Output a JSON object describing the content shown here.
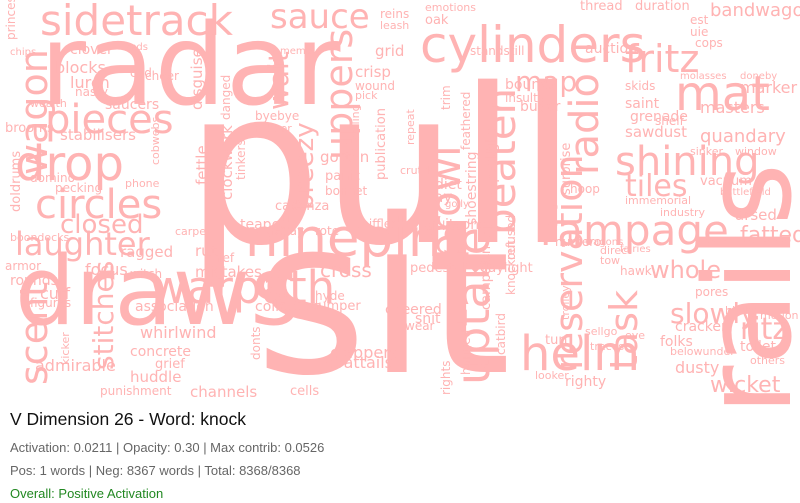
{
  "caption": {
    "title": "V Dimension 26 - Word: knock",
    "metrics": "Activation: 0.0211 | Opacity: 0.30 | Max contrib: 0.0526",
    "counts": "Pos: 1 words | Neg: 8367 words | Total: 8368/8368",
    "status": "Overall: Positive Activation"
  },
  "colors": {
    "word": "#ffb3b3",
    "status": "#228822"
  },
  "words": [
    "pull",
    "sit",
    "rails",
    "radar",
    "draws",
    "ninepins",
    "sidetrack",
    "cylinders",
    "warpath",
    "rampage",
    "drop",
    "laughter",
    "pieces",
    "circles",
    "helm",
    "reservation",
    "task",
    "uptake",
    "sauce",
    "shining",
    "mat",
    "fritz",
    "beaten",
    "prowl",
    "radio",
    "uppers",
    "wagon",
    "scent",
    "stitches",
    "wait",
    "tiles",
    "whole",
    "slowly",
    "ritz",
    "wicket",
    "closed",
    "fatted",
    "breezy",
    "cross",
    "map",
    "thread",
    "duration",
    "bandwagon",
    "reins",
    "oak",
    "emotions",
    "leash",
    "grid",
    "trim",
    "standstill",
    "auction",
    "bounds",
    "insults",
    "buyer",
    "skids",
    "saint",
    "grenade",
    "masters",
    "marker",
    "molasses",
    "doneby",
    "quandary",
    "shelf",
    "sawdust",
    "sinker",
    "window",
    "vacuum",
    "battlefield",
    "immemorial",
    "arsed",
    "industry",
    "tow",
    "hawk",
    "pores",
    "cracker",
    "hitch",
    "motion",
    "toilet",
    "others",
    "folks",
    "dusty",
    "belowunder",
    "eve",
    "righty",
    "looker",
    "traces",
    "sellgo",
    "turf",
    "trolley",
    "catbird",
    "campaign",
    "hanged",
    "rights",
    "knockout",
    "refused",
    "spotlight",
    "shoestring",
    "surprise",
    "hoop",
    "diet",
    "crutch",
    "lay",
    "golly",
    "gotten",
    "panic",
    "bonnet",
    "sniffles",
    "aisles",
    "itsones",
    "daylight",
    "pedestal",
    "numero",
    "wagons",
    "direct",
    "fairies",
    "clappers",
    "coattails",
    "cells",
    "collection",
    "dumper",
    "hyde",
    "cheered",
    "snit",
    "wear",
    "clover",
    "zeds",
    "blocks",
    "lurch",
    "nasty",
    "cud",
    "cheer",
    "saucers",
    "wealth",
    "stabilisers",
    "cobwebs",
    "doldrums",
    "brooms",
    "domino",
    "pecking",
    "phone",
    "carpet",
    "chief",
    "teapot",
    "repay",
    "rote",
    "rut",
    "mistakes",
    "cadenza",
    "fettle",
    "clockwork",
    "tinkers",
    "byebye",
    "rubber",
    "danged",
    "disguise",
    "ragged",
    "boondocks",
    "armor",
    "rounds",
    "cuff",
    "figures",
    "kicker",
    "focus",
    "witch",
    "association",
    "whirlwind",
    "concrete",
    "grief",
    "huddle",
    "channels",
    "punishment",
    "admirable",
    "donts",
    "memo",
    "crisp",
    "wound",
    "pick",
    "publication",
    "sailing",
    "repeat",
    "feathered",
    "cops",
    "est",
    "uie",
    "princess",
    "chips"
  ]
}
